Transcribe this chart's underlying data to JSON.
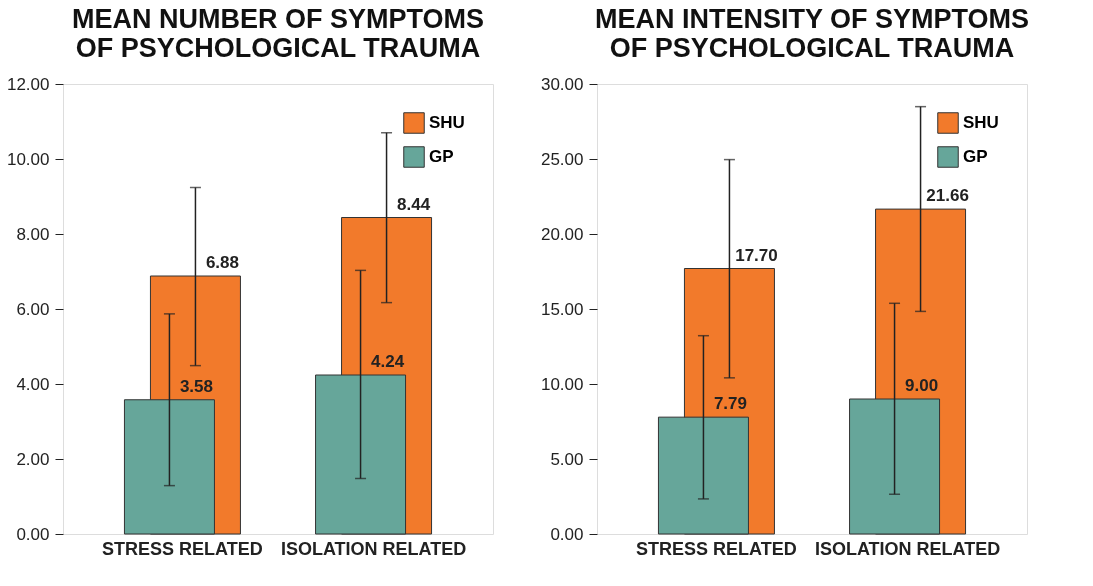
{
  "chart_data": [
    {
      "type": "bar",
      "title": "MEAN NUMBER OF SYMPTOMS\nOF PSYCHOLOGICAL TRAUMA",
      "categories": [
        "STRESS RELATED",
        "ISOLATION RELATED"
      ],
      "series": [
        {
          "name": "SHU",
          "color": "#f27a2b",
          "values": [
            6.88,
            8.44
          ],
          "value_labels": [
            "6.88",
            "8.44"
          ],
          "errors": [
            [
              4.49,
              9.24
            ],
            [
              6.17,
              10.7
            ]
          ]
        },
        {
          "name": "GP",
          "color": "#66a69a",
          "values": [
            3.58,
            4.24
          ],
          "value_labels": [
            "3.58",
            "4.24"
          ],
          "errors": [
            [
              1.29,
              5.87
            ],
            [
              1.48,
              7.03
            ]
          ]
        }
      ],
      "ylim": [
        0,
        12
      ],
      "yticks": [
        {
          "value": 0,
          "label": "0.00"
        },
        {
          "value": 2,
          "label": "2.00"
        },
        {
          "value": 4,
          "label": "4.00"
        },
        {
          "value": 6,
          "label": "6.00"
        },
        {
          "value": 8,
          "label": "8.00"
        },
        {
          "value": 10,
          "label": "10.00"
        },
        {
          "value": 12,
          "label": "12.00"
        }
      ],
      "grid": false,
      "legend": "top right"
    },
    {
      "type": "bar",
      "title": "MEAN INTENSITY OF SYMPTOMS\nOF PSYCHOLOGICAL TRAUMA",
      "categories": [
        "STRESS RELATED",
        "ISOLATION RELATED"
      ],
      "series": [
        {
          "name": "SHU",
          "color": "#f27a2b",
          "values": [
            17.7,
            21.66
          ],
          "value_labels": [
            "17.70",
            "21.66"
          ],
          "errors": [
            [
              10.41,
              24.96
            ],
            [
              14.84,
              28.49
            ]
          ]
        },
        {
          "name": "GP",
          "color": "#66a69a",
          "values": [
            7.79,
            9.0
          ],
          "value_labels": [
            "7.79",
            "9.00"
          ],
          "errors": [
            [
              2.34,
              13.22
            ],
            [
              2.65,
              15.38
            ]
          ]
        }
      ],
      "ylim": [
        0,
        30
      ],
      "yticks": [
        {
          "value": 0,
          "label": "0.00"
        },
        {
          "value": 5,
          "label": "5.00"
        },
        {
          "value": 10,
          "label": "10.00"
        },
        {
          "value": 15,
          "label": "15.00"
        },
        {
          "value": 20,
          "label": "20.00"
        },
        {
          "value": 25,
          "label": "25.00"
        },
        {
          "value": 30,
          "label": "30.00"
        }
      ],
      "grid": false,
      "legend": "top right"
    }
  ]
}
